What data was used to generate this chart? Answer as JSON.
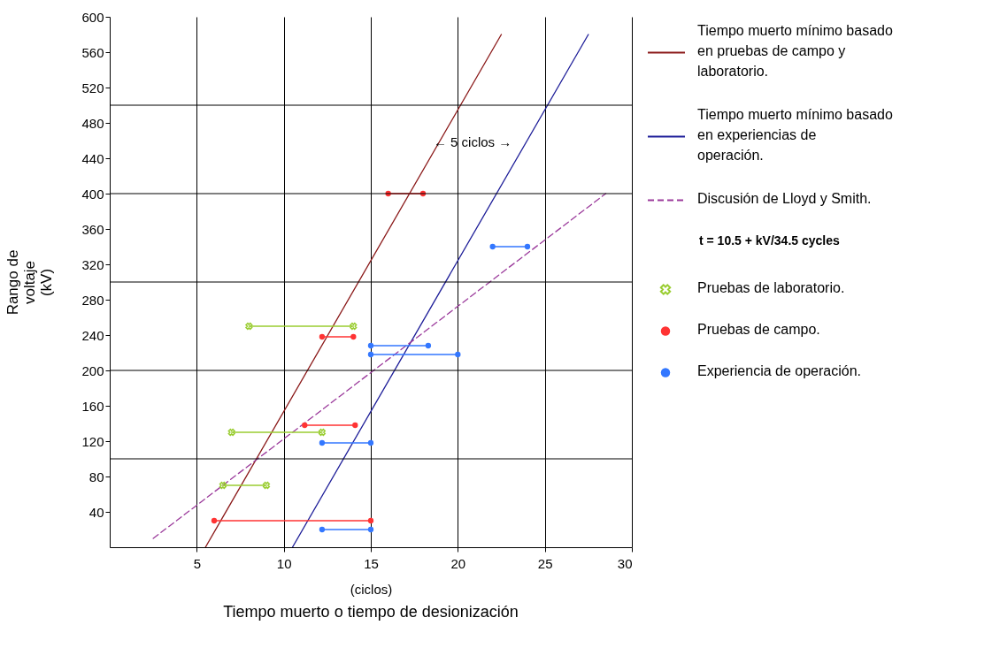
{
  "chart_data": {
    "type": "line",
    "title": "Tiempo muerto o tiempo de desionización",
    "xlabel": "(ciclos)",
    "ylabel": "Rango de voltaje (kV)",
    "xlim": [
      0,
      30
    ],
    "xticks": [
      5,
      10,
      15,
      20,
      25,
      30
    ],
    "ylim": [
      0,
      600
    ],
    "yticks": [
      40,
      80,
      120,
      160,
      200,
      240,
      280,
      320,
      360,
      400,
      440,
      480,
      520,
      560,
      600
    ],
    "grid": "x",
    "legend": "right",
    "ref_lines": [
      {
        "axis": "y",
        "value": 100,
        "color": "#000000"
      },
      {
        "axis": "y",
        "value": 200,
        "color": "#000000"
      },
      {
        "axis": "y",
        "value": 300,
        "color": "#000000"
      },
      {
        "axis": "y",
        "value": 400,
        "color": "#000000"
      },
      {
        "axis": "y",
        "value": 500,
        "color": "#000000"
      }
    ],
    "annotations": [
      "← 5 ciclos →",
      "t = 10.5 + kV/34.5 cycles"
    ],
    "series": [
      {
        "name": "Tiempo muerto mínimo basado en pruebas de campo y laboratorio.",
        "color": "#8b1a1a",
        "line_style": "solid",
        "x": [
          5.5,
          22.5
        ],
        "values": [
          0,
          580
        ]
      },
      {
        "name": "Tiempo muerto mínimo basado en experiencias de operación.",
        "color": "#1f1f99",
        "line_style": "solid",
        "x": [
          10.5,
          27.5
        ],
        "values": [
          0,
          580
        ]
      },
      {
        "name": "Discusión de Lloyd y Smith.",
        "color": "#9b3a9b",
        "line_style": "dashed",
        "x": [
          2.5,
          28.5
        ],
        "values": [
          10,
          400
        ]
      },
      {
        "name": "Pruebas de laboratorio.",
        "color": "#9acd32",
        "marker": "cross",
        "line_style": "solid",
        "x": [
          8,
          14
        ],
        "values": [
          250,
          250
        ]
      },
      {
        "color": "#9acd32",
        "marker": "cross",
        "line_style": "solid",
        "x": [
          7,
          12.2
        ],
        "values": [
          130,
          130
        ]
      },
      {
        "color": "#9acd32",
        "marker": "cross",
        "line_style": "solid",
        "x": [
          6.5,
          9
        ],
        "values": [
          70,
          70
        ]
      },
      {
        "name": "Pruebas de campo.",
        "color": "#ff3333",
        "marker": "circle",
        "line_style": "solid",
        "x": [
          16,
          18
        ],
        "values": [
          400,
          400
        ]
      },
      {
        "color": "#ff3333",
        "marker": "circle",
        "line_style": "solid",
        "x": [
          12.2,
          14
        ],
        "values": [
          238,
          238
        ]
      },
      {
        "color": "#ff3333",
        "marker": "circle",
        "line_style": "solid",
        "x": [
          11.2,
          14.1
        ],
        "values": [
          138,
          138
        ]
      },
      {
        "color": "#ff3333",
        "marker": "circle",
        "line_style": "solid",
        "x": [
          6,
          15
        ],
        "values": [
          30,
          30
        ]
      },
      {
        "name": "Experiencia de operación.",
        "color": "#3377ff",
        "marker": "circle",
        "line_style": "solid",
        "x": [
          22,
          24
        ],
        "values": [
          340,
          340
        ]
      },
      {
        "color": "#3377ff",
        "marker": "circle",
        "line_style": "solid",
        "x": [
          15,
          18.3
        ],
        "values": [
          228,
          228
        ]
      },
      {
        "color": "#3377ff",
        "marker": "circle",
        "line_style": "solid",
        "x": [
          15,
          20
        ],
        "values": [
          218,
          218
        ]
      },
      {
        "color": "#3377ff",
        "marker": "circle",
        "line_style": "solid",
        "x": [
          12.2,
          15
        ],
        "values": [
          118,
          118
        ]
      },
      {
        "color": "#3377ff",
        "marker": "circle",
        "line_style": "solid",
        "x": [
          12.2,
          15
        ],
        "values": [
          20,
          20
        ]
      }
    ]
  }
}
